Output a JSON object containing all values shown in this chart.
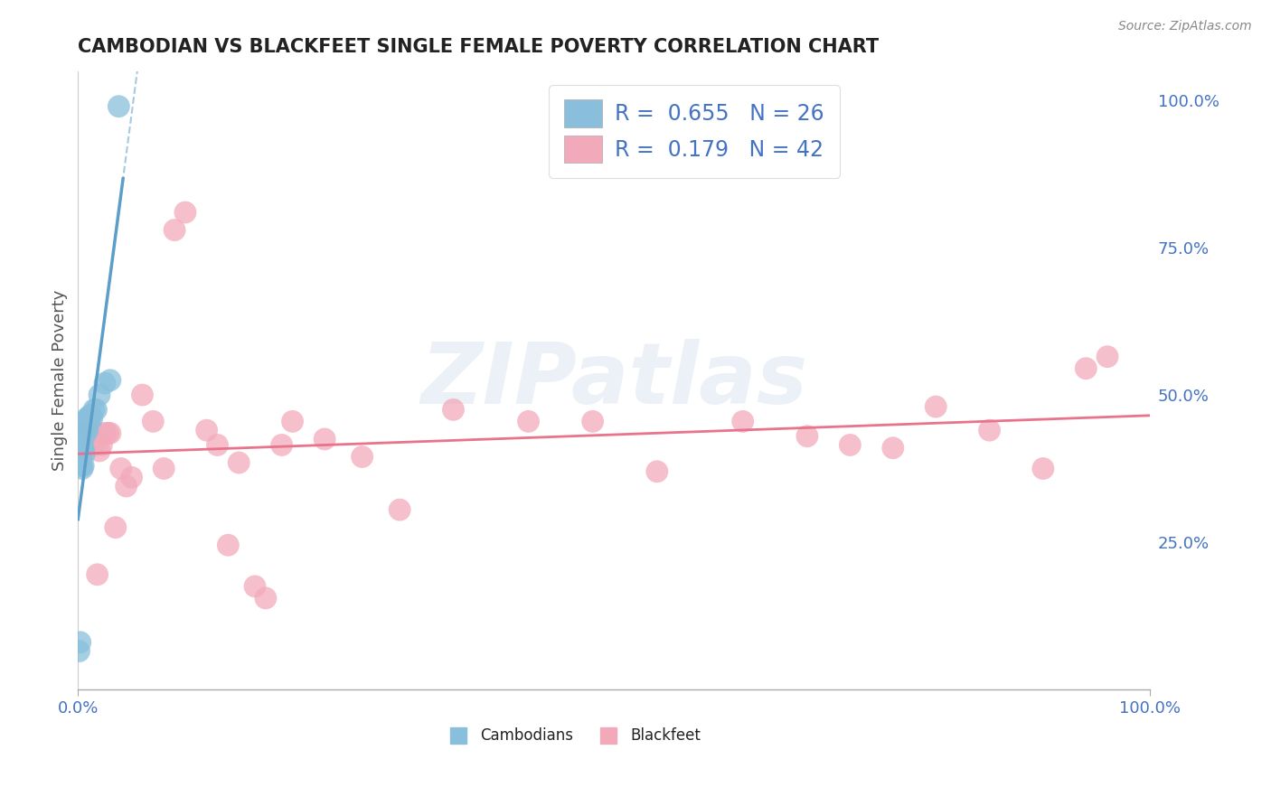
{
  "title": "CAMBODIAN VS BLACKFEET SINGLE FEMALE POVERTY CORRELATION CHART",
  "source": "Source: ZipAtlas.com",
  "ylabel": "Single Female Poverty",
  "legend_cambodian_R": "0.655",
  "legend_cambodian_N": "26",
  "legend_blackfeet_R": "0.179",
  "legend_blackfeet_N": "42",
  "cambodian_color": "#89bfdc",
  "blackfeet_color": "#f2aabb",
  "cambodian_line_color": "#5b9ec9",
  "blackfeet_line_color": "#e8738a",
  "watermark": "ZIPatlas",
  "cam_x": [
    0.001,
    0.002,
    0.003,
    0.003,
    0.004,
    0.004,
    0.005,
    0.005,
    0.006,
    0.006,
    0.007,
    0.007,
    0.008,
    0.008,
    0.009,
    0.01,
    0.01,
    0.011,
    0.012,
    0.013,
    0.015,
    0.017,
    0.02,
    0.025,
    0.03,
    0.038
  ],
  "cam_y": [
    0.065,
    0.08,
    0.38,
    0.395,
    0.375,
    0.41,
    0.38,
    0.41,
    0.4,
    0.43,
    0.44,
    0.455,
    0.445,
    0.46,
    0.44,
    0.455,
    0.46,
    0.465,
    0.465,
    0.46,
    0.475,
    0.475,
    0.5,
    0.52,
    0.525,
    0.99
  ],
  "blk_x": [
    0.01,
    0.012,
    0.015,
    0.018,
    0.02,
    0.022,
    0.025,
    0.028,
    0.03,
    0.035,
    0.04,
    0.045,
    0.05,
    0.06,
    0.07,
    0.08,
    0.09,
    0.1,
    0.12,
    0.13,
    0.14,
    0.15,
    0.165,
    0.175,
    0.19,
    0.2,
    0.23,
    0.265,
    0.3,
    0.35,
    0.42,
    0.48,
    0.54,
    0.62,
    0.68,
    0.72,
    0.76,
    0.8,
    0.85,
    0.9,
    0.94,
    0.96
  ],
  "blk_y": [
    0.435,
    0.445,
    0.415,
    0.195,
    0.405,
    0.415,
    0.435,
    0.435,
    0.435,
    0.275,
    0.375,
    0.345,
    0.36,
    0.5,
    0.455,
    0.375,
    0.78,
    0.81,
    0.44,
    0.415,
    0.245,
    0.385,
    0.175,
    0.155,
    0.415,
    0.455,
    0.425,
    0.395,
    0.305,
    0.475,
    0.455,
    0.455,
    0.37,
    0.455,
    0.43,
    0.415,
    0.41,
    0.48,
    0.44,
    0.375,
    0.545,
    0.565
  ],
  "xlim": [
    0.0,
    1.0
  ],
  "ylim": [
    0.0,
    1.05
  ],
  "ytick_vals": [
    0.0,
    0.25,
    0.5,
    0.75,
    1.0
  ],
  "ytick_labels_right": [
    "",
    "25.0%",
    "50.0%",
    "75.0%",
    "100.0%"
  ],
  "xtick_vals": [
    0.0,
    1.0
  ],
  "xtick_labels": [
    "0.0%",
    "100.0%"
  ],
  "background_color": "#ffffff",
  "grid_color": "#cccccc",
  "legend_color": "#4472c4",
  "title_color": "#222222",
  "source_color": "#888888",
  "ylabel_color": "#555555"
}
